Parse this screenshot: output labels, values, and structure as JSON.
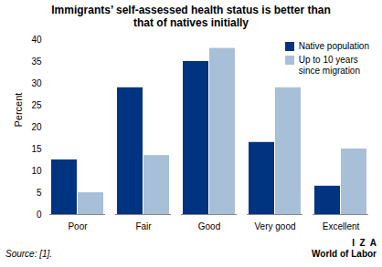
{
  "chart_data": {
    "type": "bar",
    "title": "Immigrants’ self-assessed health status is better than\nthat of natives initially",
    "categories": [
      "Poor",
      "Fair",
      "Good",
      "Very good",
      "Excellent"
    ],
    "series": [
      {
        "name": "Native population",
        "color": "#003380",
        "values": [
          12.5,
          29.0,
          35.0,
          16.5,
          6.5
        ]
      },
      {
        "name": "Up to 10 years\nsince migration",
        "color": "#a8bfd8",
        "values": [
          5.0,
          13.5,
          38.0,
          29.0,
          15.0
        ]
      }
    ],
    "ylabel": "Percent",
    "ylim": [
      0,
      40
    ],
    "yticks": [
      0,
      5,
      10,
      15,
      20,
      25,
      30,
      35,
      40
    ],
    "grid": false,
    "legend": "upper right",
    "annotations": [
      "Source: [1].",
      "I  Z  A",
      "World of Labor"
    ]
  }
}
